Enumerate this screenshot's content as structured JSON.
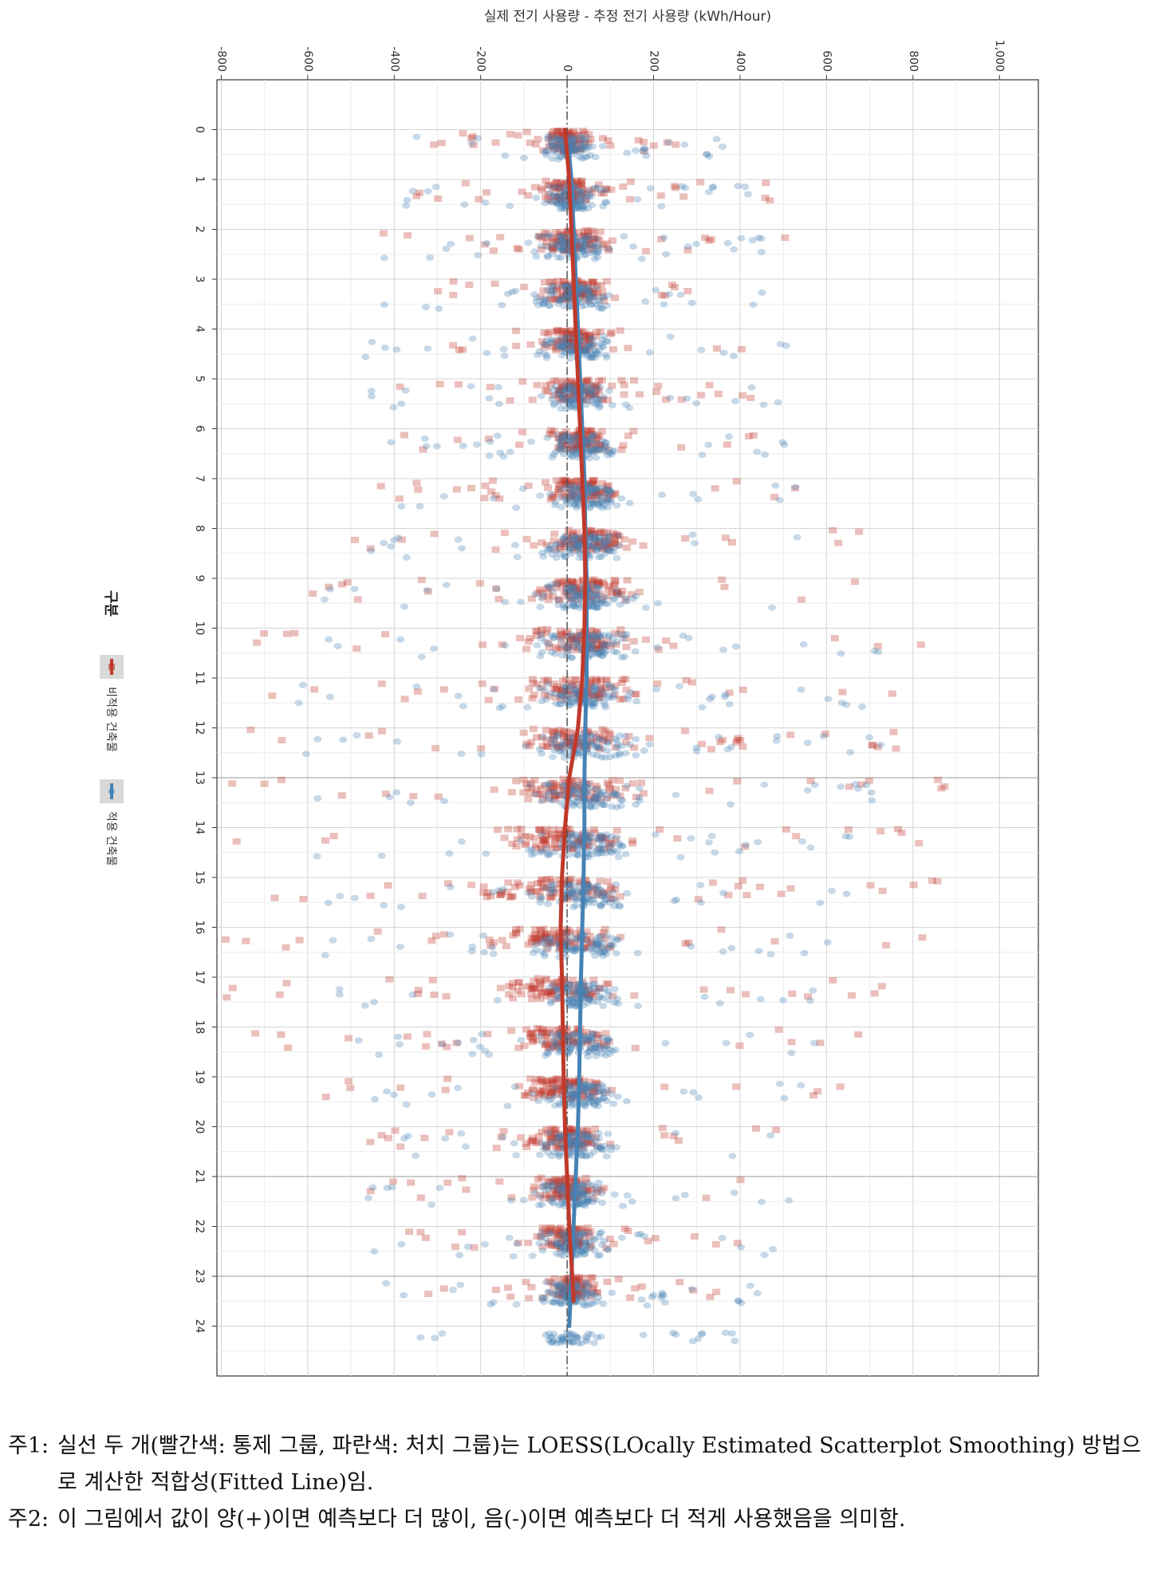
{
  "chart_data": {
    "type": "scatter",
    "title": "실제 전기 사용량 - 추정 전기 사용량 (kWh/Hour)",
    "orientation": "rotated",
    "x_axis": {
      "label": "",
      "range": [
        -1,
        25
      ],
      "ticks": [
        0,
        1,
        2,
        3,
        4,
        5,
        6,
        7,
        8,
        9,
        10,
        11,
        12,
        13,
        14,
        15,
        16,
        17,
        18,
        19,
        20,
        21,
        22,
        23,
        24
      ]
    },
    "y_axis": {
      "label": "실제 전기 사용량 - 추정 전기 사용량 (kWh/Hour)",
      "range": [
        -810,
        1090
      ],
      "ticks": [
        -800,
        -600,
        -400,
        -200,
        0,
        200,
        400,
        600,
        800,
        1000
      ],
      "tick_labels": [
        "-800",
        "-600",
        "-400",
        "-200",
        "0",
        "200",
        "400",
        "600",
        "800",
        "1,000"
      ]
    },
    "reference_line": {
      "value": 0,
      "style": "dashdot"
    },
    "grid": true,
    "legend": {
      "title": "구분",
      "position": "left",
      "entries": [
        {
          "label": "비적용 건축물",
          "color": "#c0392b",
          "marker": "square"
        },
        {
          "label": "적용 건축물",
          "color": "#4682b4",
          "marker": "circle"
        }
      ]
    },
    "series": [
      {
        "name": "비적용 건축물",
        "color": "#c0392b",
        "marker": "square",
        "loess_x": [
          0,
          1,
          2,
          3,
          4,
          5,
          6,
          7,
          8,
          9,
          10,
          11,
          12,
          13,
          14,
          15,
          16,
          17,
          18,
          19,
          20,
          21,
          22,
          23,
          23.5
        ],
        "loess_y": [
          -5,
          5,
          10,
          15,
          20,
          25,
          30,
          35,
          40,
          42,
          40,
          35,
          25,
          5,
          -5,
          -12,
          -15,
          -12,
          -10,
          -8,
          -5,
          0,
          5,
          12,
          15
        ],
        "spread": [
          120,
          180,
          200,
          160,
          150,
          170,
          160,
          200,
          260,
          280,
          300,
          280,
          300,
          340,
          320,
          340,
          330,
          300,
          280,
          260,
          200,
          180,
          150,
          130,
          120
        ]
      },
      {
        "name": "적용 건축물",
        "color": "#4682b4",
        "marker": "circle",
        "loess_x": [
          0.5,
          1,
          2,
          3,
          4,
          5,
          6,
          7,
          8,
          9,
          10,
          11,
          12,
          13,
          14,
          15,
          16,
          17,
          18,
          19,
          20,
          21,
          22,
          23,
          24
        ],
        "loess_y": [
          5,
          10,
          15,
          20,
          25,
          30,
          35,
          40,
          42,
          45,
          45,
          45,
          42,
          40,
          40,
          38,
          35,
          32,
          30,
          28,
          25,
          20,
          15,
          10,
          5
        ],
        "spread": [
          140,
          160,
          170,
          180,
          190,
          190,
          190,
          200,
          220,
          240,
          260,
          260,
          270,
          260,
          240,
          240,
          230,
          220,
          220,
          210,
          200,
          190,
          180,
          170,
          150
        ]
      }
    ]
  },
  "notes": [
    {
      "label": "주1:",
      "text": "실선 두 개(빨간색: 통제 그룹, 파란색: 처치 그룹)는 LOESS(LOcally Estimated Scatterplot Smoothing) 방법으로 계산한 적합성(Fitted Line)임."
    },
    {
      "label": "주2:",
      "text": "이 그림에서 값이 양(+)이면 예측보다 더 많이, 음(-)이면 예측보다 더 적게 사용했음을 의미함."
    }
  ]
}
